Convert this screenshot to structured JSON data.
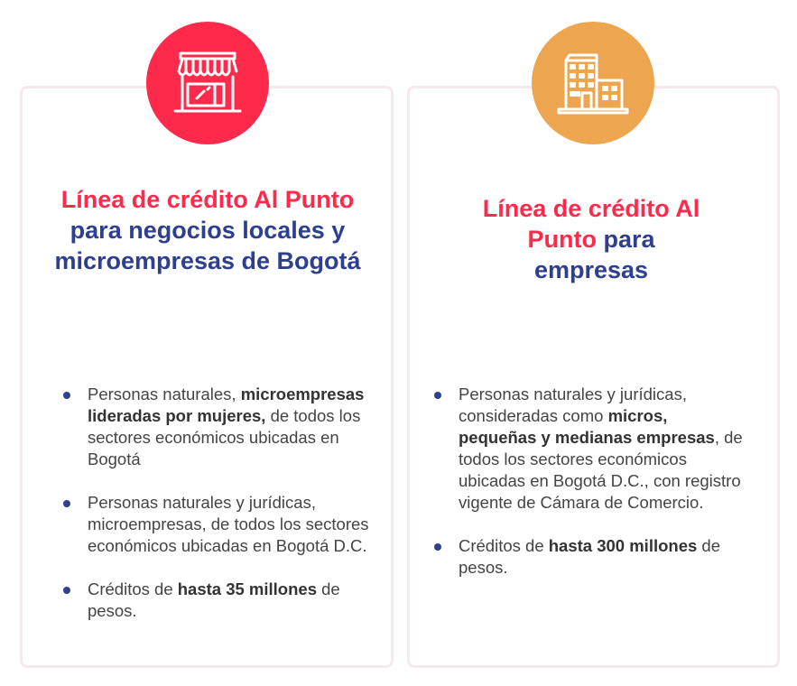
{
  "colors": {
    "red": "#fe2a4c",
    "orange": "#eda550",
    "navy": "#2e3f8f"
  },
  "cards": [
    {
      "icon": "store-icon",
      "title_red": "Línea de crédito Al Punto",
      "title_rest": "para negocios locales y microempresas de Bogotá",
      "bullets": [
        {
          "a": "Personas naturales,",
          "b": "microempresas lideradas por mujeres,",
          "c": "de todos los sectores económicos ubicadas en Bogotá"
        },
        {
          "a": "Personas naturales y jurídicas, microempresas, de todos los sectores económicos ubicadas en Bogotá D.C.",
          "b": "",
          "c": ""
        },
        {
          "a": "Créditos de",
          "b": "hasta 35 millones",
          "c": "de pesos."
        }
      ]
    },
    {
      "icon": "building-icon",
      "title_red": "Línea de crédito Al Punto",
      "title_rest": "para empresas",
      "bullets": [
        {
          "a": "Personas naturales y jurídicas, consideradas como",
          "b": "micros, pequeñas y medianas empresas",
          "c": ", de todos los sectores económicos ubicadas en Bogotá D.C., con registro vigente de Cámara de Comercio."
        },
        {
          "a": "Créditos de",
          "b": "hasta 300 millones",
          "c": "de pesos."
        }
      ]
    }
  ]
}
